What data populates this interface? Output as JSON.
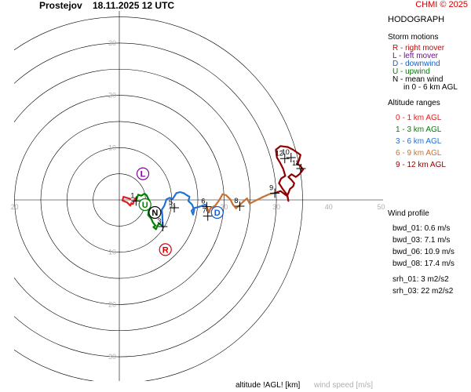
{
  "header": {
    "station": "Prostejov",
    "datetime": "18.11.2025 12 UTC",
    "copyright": "CHMI © 2025"
  },
  "panel": {
    "title": "HODOGRAPH",
    "storm_title": "Storm motions",
    "storm_items": [
      {
        "text": "R - right mover",
        "color": "#d40000"
      },
      {
        "text": "L - left mover",
        "color": "#8000a0"
      },
      {
        "text": "D - downwind",
        "color": "#1060d0"
      },
      {
        "text": "U - upwind",
        "color": "#008000"
      },
      {
        "text": "N - mean wind",
        "color": "#000000"
      },
      {
        "text": "in 0 - 6 km AGL",
        "color": "#000000"
      }
    ],
    "altitude_title": "Altitude ranges",
    "altitude_items": [
      {
        "text": "0 - 1 km AGL",
        "color": "#e02020"
      },
      {
        "text": "1 - 3 km AGL",
        "color": "#008000"
      },
      {
        "text": "3 - 6 km AGL",
        "color": "#2070d8"
      },
      {
        "text": "6 - 9 km AGL",
        "color": "#c87030"
      },
      {
        "text": "9 - 12 km AGL",
        "color": "#900000"
      }
    ],
    "wind_title": "Wind profile",
    "wind_items": [
      "bwd_01: 0.6 m/s",
      "bwd_03: 7.1 m/s",
      "bwd_06: 10.9 m/s",
      "bwd_08: 17.4 m/s"
    ],
    "srh_items": [
      "srh_01: 3 m2/s2",
      "srh_03: 22 m2/s2"
    ]
  },
  "footer": {
    "altitude_label": "altitude !AGL! [km]",
    "speed_label": "wind speed [m/s]"
  },
  "chart_data": {
    "type": "hodograph",
    "rings": [
      5,
      10,
      15,
      20,
      25,
      30,
      35
    ],
    "x_ticks": [
      {
        "v": -20,
        "label": "20"
      },
      {
        "v": 10,
        "label": "10"
      },
      {
        "v": 20,
        "label": "20"
      },
      {
        "v": 30,
        "label": "30"
      },
      {
        "v": 40,
        "label": "40"
      },
      {
        "v": 50,
        "label": "50"
      }
    ],
    "y_ticks": [
      {
        "v": 30,
        "label": "30"
      },
      {
        "v": 20,
        "label": "20"
      },
      {
        "v": 10,
        "label": "10"
      },
      {
        "v": -10,
        "label": "10"
      },
      {
        "v": -20,
        "label": "20"
      },
      {
        "v": -30,
        "label": "30"
      }
    ],
    "segments": [
      {
        "name": "0 - 1 km AGL",
        "color": "#e02020",
        "points": [
          [
            2.1,
            0.2
          ],
          [
            0.8,
            0.6
          ],
          [
            0.6,
            -0.1
          ],
          [
            1.5,
            -0.5
          ],
          [
            2.1,
            -1.1
          ],
          [
            2.3,
            -0.6
          ],
          [
            2.6,
            -0.8
          ],
          [
            3,
            0.3
          ],
          [
            3.2,
            -0.2
          ]
        ]
      },
      {
        "name": "1 - 3 km AGL",
        "color": "#008000",
        "points": [
          [
            3.2,
            -0.2
          ],
          [
            3.6,
            1
          ],
          [
            4.2,
            0.8
          ],
          [
            4.8,
            1.2
          ],
          [
            5.2,
            0.9
          ],
          [
            5.8,
            -0.3
          ],
          [
            5.4,
            -0.8
          ],
          [
            5.9,
            -1.3
          ],
          [
            5.6,
            -2.1
          ],
          [
            5.5,
            -2.9
          ],
          [
            6.1,
            -3.6
          ],
          [
            6.4,
            -4.3
          ],
          [
            6.9,
            -4.9
          ],
          [
            6.5,
            -5.2
          ],
          [
            7,
            -5.6
          ],
          [
            7.3,
            -4.9
          ],
          [
            7.6,
            -4.5
          ],
          [
            8,
            -4.8
          ],
          [
            8.3,
            -5.1
          ]
        ]
      },
      {
        "name": "3 - 6 km AGL",
        "color": "#2070d8",
        "points": [
          [
            8.3,
            -5.1
          ],
          [
            8.2,
            -2.8
          ],
          [
            8.1,
            -1.9
          ],
          [
            8.6,
            -1.1
          ],
          [
            9,
            0.1
          ],
          [
            9.6,
            0.4
          ],
          [
            10.2,
            0.2
          ],
          [
            10.9,
            1.3
          ],
          [
            11.6,
            1.5
          ],
          [
            12.3,
            1.3
          ],
          [
            12.9,
            0.9
          ],
          [
            13.4,
            0.6
          ],
          [
            13.2,
            -0.2
          ],
          [
            13.9,
            -0.9
          ],
          [
            14.3,
            -1.9
          ],
          [
            14.1,
            -2.8
          ],
          [
            13.8,
            -2.1
          ],
          [
            14.2,
            -1.6
          ],
          [
            15.6,
            -1.2
          ],
          [
            16.4,
            -0.9
          ],
          [
            16.7,
            -1.3
          ]
        ]
      },
      {
        "name": "6 - 9 km AGL",
        "color": "#c87030",
        "points": [
          [
            16.7,
            -1.3
          ],
          [
            17.1,
            -2.4
          ],
          [
            17.4,
            -1.6
          ],
          [
            18.3,
            -1.1
          ],
          [
            18.9,
            -0.3
          ],
          [
            19.3,
            0.3
          ],
          [
            19.7,
            1.1
          ],
          [
            20.4,
            0.9
          ],
          [
            21.2,
            0.1
          ],
          [
            21.7,
            -0.9
          ],
          [
            22.3,
            -1.6
          ],
          [
            22.9,
            -1.1
          ],
          [
            23.7,
            -0.3
          ],
          [
            24.4,
            0.3
          ],
          [
            24.9,
            -0.7
          ],
          [
            25.9,
            -0.2
          ],
          [
            26.9,
            0.3
          ],
          [
            27.5,
            0.6
          ],
          [
            28.6,
            1.1
          ],
          [
            29.7,
            1.3
          ]
        ]
      },
      {
        "name": "9 - 12 km AGL",
        "color": "#900000",
        "points": [
          [
            29.7,
            1.3
          ],
          [
            30.8,
            1.7
          ],
          [
            32.1,
            0.7
          ],
          [
            32.3,
            -0.2
          ],
          [
            32.1,
            0.9
          ],
          [
            31.2,
            2.1
          ],
          [
            30.5,
            3.2
          ],
          [
            30.9,
            4.1
          ],
          [
            31.7,
            4.6
          ],
          [
            31.3,
            5.9
          ],
          [
            30.7,
            7.1
          ],
          [
            30.1,
            8.1
          ],
          [
            29.9,
            9.6
          ],
          [
            30.8,
            10.3
          ],
          [
            32.2,
            10.1
          ],
          [
            33.2,
            9.6
          ],
          [
            34.2,
            8.9
          ],
          [
            34.6,
            8.6
          ],
          [
            34.3,
            7.5
          ],
          [
            33.9,
            6.9
          ],
          [
            34.5,
            6.6
          ],
          [
            35.1,
            5.8
          ],
          [
            34.4,
            4.9
          ],
          [
            33.7,
            4.4
          ],
          [
            32.9,
            4.9
          ],
          [
            32.3,
            4.4
          ],
          [
            32.9,
            3.8
          ],
          [
            33.4,
            3.2
          ],
          [
            33.2,
            2.6
          ],
          [
            32.6,
            2.1
          ],
          [
            32.2,
            1.1
          ],
          [
            31.9,
            0.9
          ]
        ]
      }
    ],
    "altitude_marks": [
      {
        "label": "1",
        "x": 3.2,
        "y": -0.2
      },
      {
        "label": "3",
        "x": 8.3,
        "y": -5.1
      },
      {
        "label": "5",
        "x": 10.5,
        "y": -1.5
      },
      {
        "label": "6",
        "x": 16.7,
        "y": -1.3
      },
      {
        "label": "7",
        "x": 16.9,
        "y": -3.1
      },
      {
        "label": "8",
        "x": 23.0,
        "y": -1.2
      },
      {
        "label": "9",
        "x": 29.7,
        "y": 1.3
      },
      {
        "label": "10",
        "x": 32.8,
        "y": 8.1
      },
      {
        "label": "11",
        "x": 34.7,
        "y": 6.0
      },
      {
        "label": "12",
        "x": 31.6,
        "y": 7.9
      }
    ],
    "storm_markers": [
      {
        "label": "R",
        "x": 8.8,
        "y": -9.5,
        "color": "#d40000"
      },
      {
        "label": "L",
        "x": 4.5,
        "y": 5.0,
        "color": "#8000a0"
      },
      {
        "label": "D",
        "x": 18.7,
        "y": -2.4,
        "color": "#1060d0"
      },
      {
        "label": "U",
        "x": 4.9,
        "y": -0.9,
        "color": "#008000"
      },
      {
        "label": "N",
        "x": 6.8,
        "y": -2.4,
        "color": "#000000"
      }
    ]
  }
}
